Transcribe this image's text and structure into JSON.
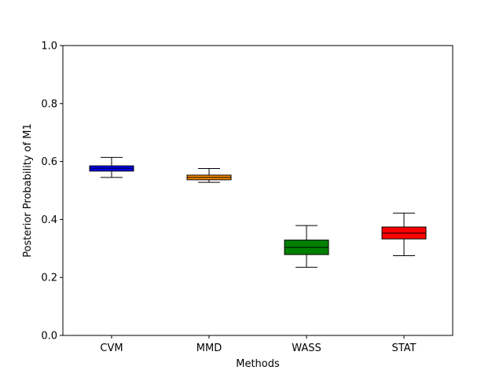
{
  "chart_data": {
    "type": "box",
    "title": "",
    "xlabel": "Methods",
    "ylabel": "Posterior Probability of M1",
    "ylim": [
      0.0,
      1.0
    ],
    "yticks": [
      0.0,
      0.2,
      0.4,
      0.6,
      0.8,
      1.0
    ],
    "ytick_labels": [
      "0.0",
      "0.2",
      "0.4",
      "0.6",
      "0.8",
      "1.0"
    ],
    "grid": false,
    "legend": "none",
    "categories": [
      "CVM",
      "MMD",
      "WASS",
      "STAT"
    ],
    "boxes": [
      {
        "category": "CVM",
        "whisker_low": 0.545,
        "q1": 0.567,
        "median": 0.577,
        "q3": 0.585,
        "whisker_high": 0.614,
        "color": "#0000ff"
      },
      {
        "category": "MMD",
        "whisker_low": 0.528,
        "q1": 0.537,
        "median": 0.545,
        "q3": 0.553,
        "whisker_high": 0.576,
        "color": "#ff8c00"
      },
      {
        "category": "WASS",
        "whisker_low": 0.235,
        "q1": 0.279,
        "median": 0.304,
        "q3": 0.329,
        "whisker_high": 0.379,
        "color": "#008000"
      },
      {
        "category": "STAT",
        "whisker_low": 0.275,
        "q1": 0.333,
        "median": 0.353,
        "q3": 0.374,
        "whisker_high": 0.422,
        "color": "#ff0000"
      }
    ]
  }
}
